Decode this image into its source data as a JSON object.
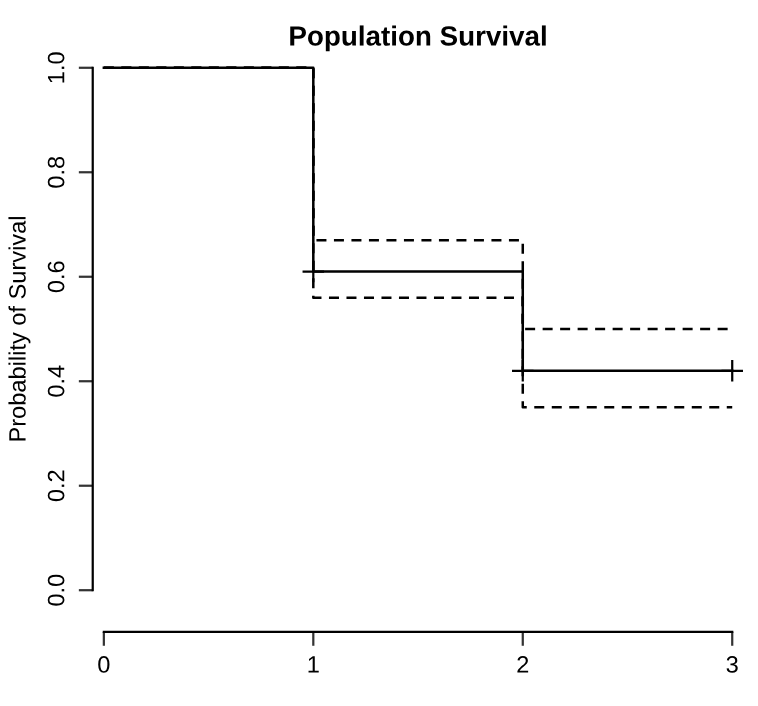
{
  "chart_data": {
    "type": "step",
    "title": "Population Survival",
    "ylabel": "Probability of Survival",
    "x": [
      0,
      1,
      2,
      3
    ],
    "series": [
      {
        "color": "#000000",
        "values": [
          1.0,
          0.61,
          0.42,
          0.42
        ],
        "line_style": "solid"
      },
      {
        "color": "#000000",
        "values": [
          1.0,
          0.67,
          0.5,
          0.5
        ],
        "line_style": "dashed"
      },
      {
        "color": "#000000",
        "values": [
          1.0,
          0.56,
          0.35,
          0.35
        ],
        "line_style": "dashed"
      },
      {
        "type": "scatter",
        "color": "#000000",
        "x": [
          1,
          2,
          3
        ],
        "values": [
          0.61,
          0.42,
          0.42
        ],
        "marker": "cross"
      }
    ],
    "xlim": [
      0,
      3
    ],
    "xticks": [
      0,
      1,
      2,
      3
    ],
    "ylim": [
      0,
      1
    ],
    "yticks": [
      {
        "value": 0,
        "label": "0.0"
      },
      0.2,
      0.4,
      0.6,
      0.8,
      {
        "value": 1,
        "label": "1.0"
      }
    ],
    "grid": false,
    "legend": false
  }
}
